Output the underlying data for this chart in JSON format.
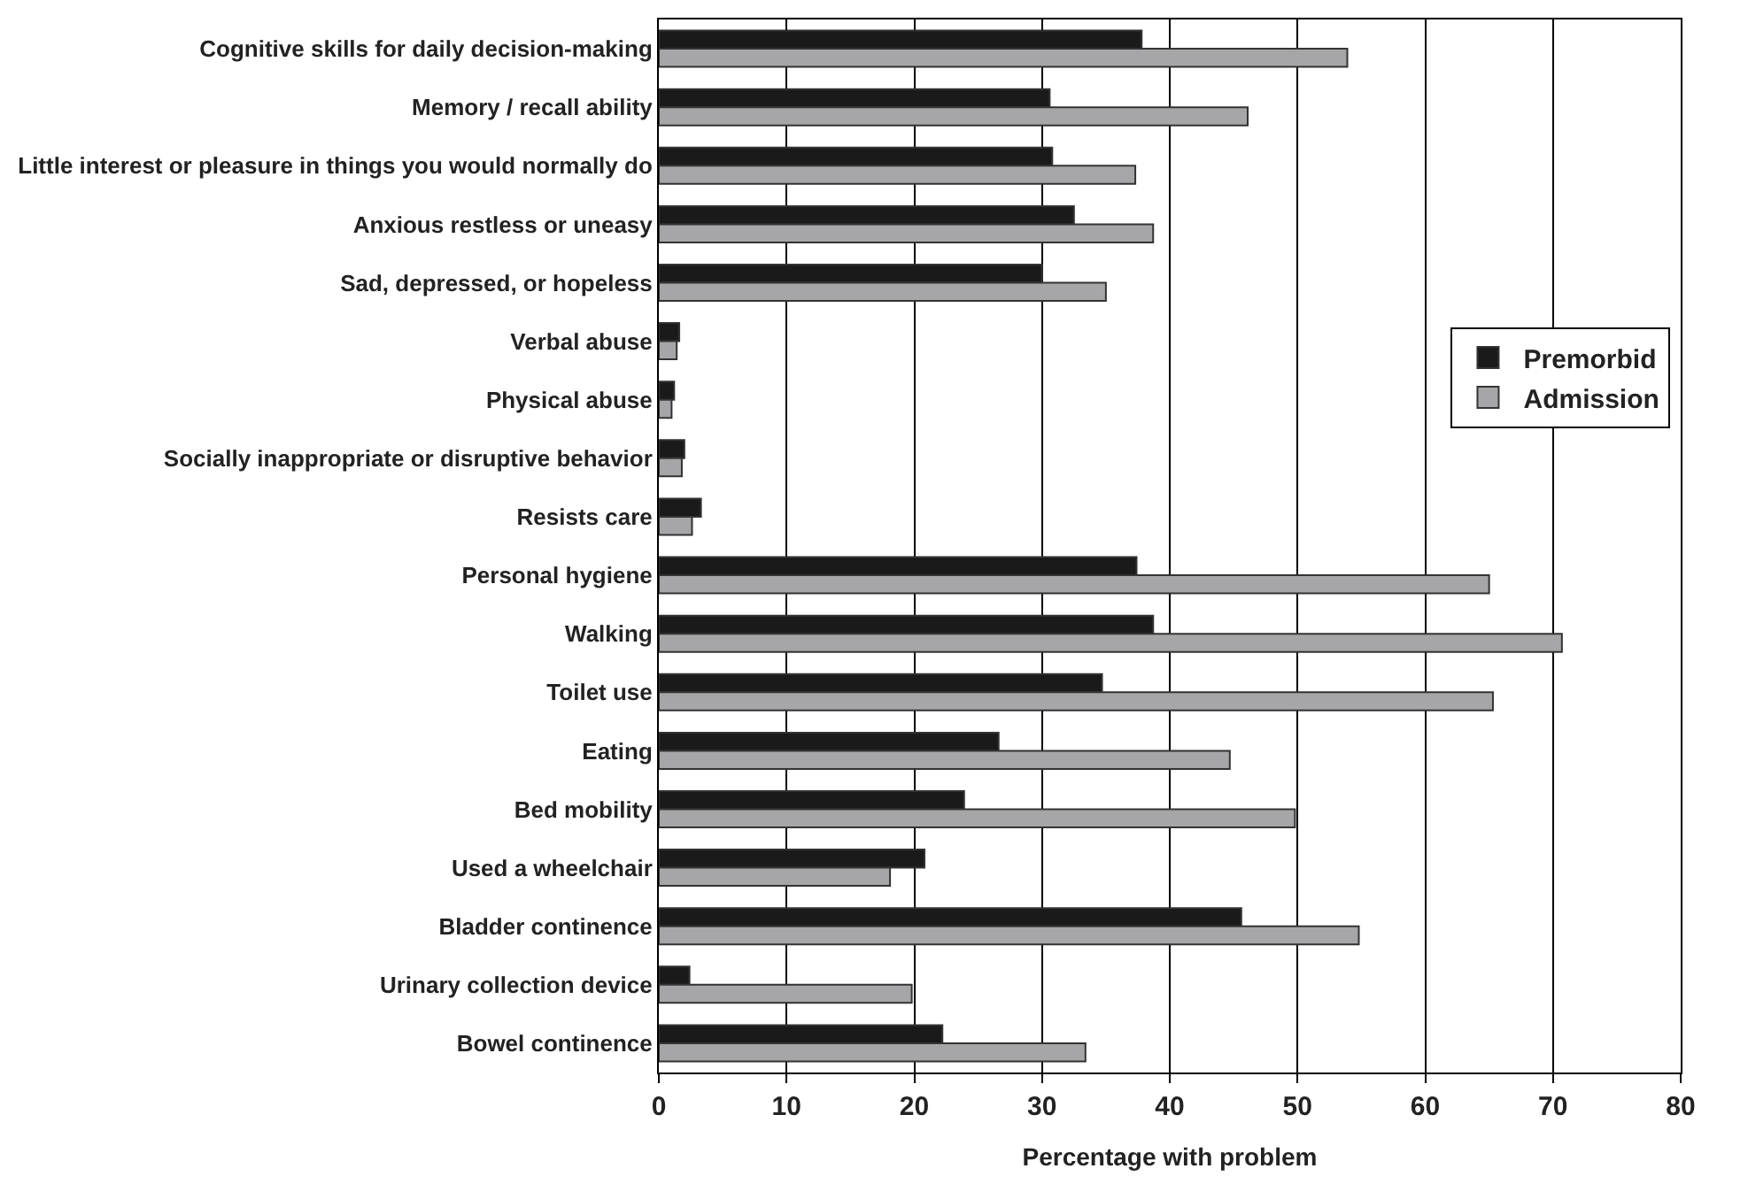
{
  "chart_data": {
    "type": "bar",
    "orientation": "horizontal",
    "xlabel": "Percentage with problem",
    "categories": [
      "Cognitive skills for daily decision-making",
      "Memory / recall ability",
      "Little interest or pleasure in things you would normally do",
      "Anxious restless or uneasy",
      "Sad, depressed, or hopeless",
      "Verbal abuse",
      "Physical abuse",
      "Socially inappropriate or disruptive behavior",
      "Resists care",
      "Personal hygiene",
      "Walking",
      "Toilet use",
      "Eating",
      "Bed mobility",
      "Used a wheelchair",
      "Bladder continence",
      "Urinary collection device",
      "Bowel continence"
    ],
    "series": [
      {
        "name": "Premorbid",
        "color": "#1a1a1a",
        "values": [
          37.8,
          30.6,
          30.8,
          32.5,
          30.0,
          1.6,
          1.2,
          2.0,
          3.3,
          37.4,
          38.7,
          34.7,
          26.6,
          23.9,
          20.8,
          45.6,
          2.4,
          22.2
        ]
      },
      {
        "name": "Admission",
        "color": "#a6a6a8",
        "values": [
          53.9,
          46.1,
          37.3,
          38.7,
          35.0,
          1.4,
          1.0,
          1.8,
          2.6,
          65.0,
          70.7,
          65.3,
          44.7,
          49.8,
          18.1,
          54.8,
          19.8,
          33.4
        ]
      }
    ],
    "xlim": [
      0,
      80
    ],
    "xticks": [
      0,
      10,
      20,
      30,
      40,
      50,
      60,
      70,
      80
    ],
    "grid": "x",
    "legend": "right"
  }
}
